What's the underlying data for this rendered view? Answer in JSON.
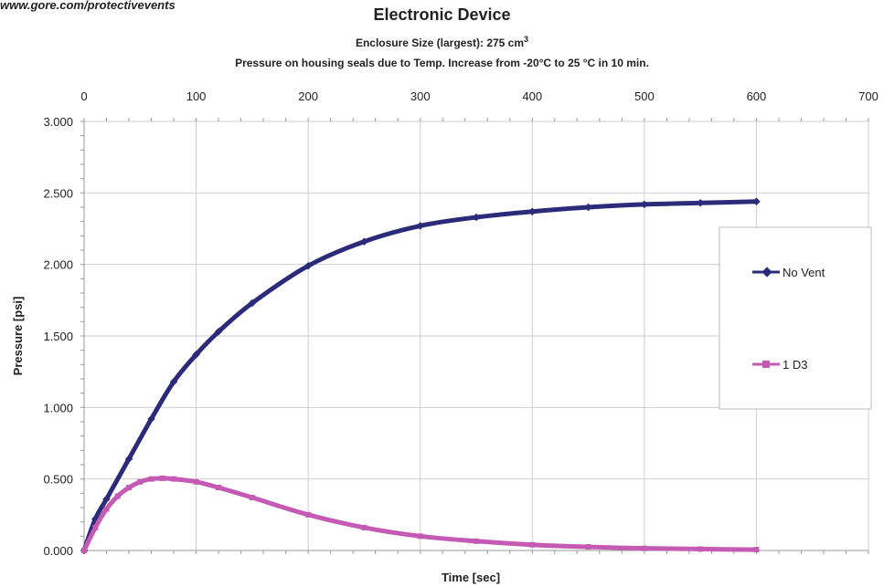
{
  "header": {
    "source": "www.gore.com/protectivevents",
    "title": "Electronic Device",
    "subtitle_prefix": "Enclosure Size (largest):  275 cm",
    "subtitle_sup": "3",
    "subtitle2": "Pressure on housing seals due to Temp. Increase from -20°C to 25 °C in 10 min."
  },
  "colors": {
    "no_vent": "#2b2b7a",
    "d3": "#c45ab3",
    "grid": "#cfcfcf",
    "axis": "#999999"
  },
  "chart_data": {
    "type": "line",
    "title": "Electronic Device",
    "xlabel": "Time  [sec]",
    "ylabel": "Pressure  [psi]",
    "xlim": [
      0,
      700
    ],
    "ylim": [
      0,
      3
    ],
    "x_ticks": [
      0,
      100,
      200,
      300,
      400,
      500,
      600,
      700
    ],
    "x_tick_labels": [
      "0",
      "100",
      "200",
      "300",
      "400",
      "500",
      "600",
      "700"
    ],
    "y_ticks": [
      0,
      0.5,
      1,
      1.5,
      2,
      2.5,
      3
    ],
    "y_tick_labels": [
      "0.000",
      "0.500",
      "1.000",
      "1.500",
      "2.000",
      "2.500",
      "3.000"
    ],
    "grid": true,
    "legend_position": "right",
    "series": [
      {
        "name": "No Vent",
        "x": [
          0,
          10,
          20,
          40,
          60,
          80,
          100,
          120,
          150,
          200,
          250,
          300,
          350,
          400,
          450,
          500,
          550,
          600
        ],
        "y": [
          0,
          0.22,
          0.36,
          0.64,
          0.92,
          1.18,
          1.37,
          1.53,
          1.73,
          1.99,
          2.16,
          2.27,
          2.33,
          2.37,
          2.4,
          2.42,
          2.43,
          2.44
        ]
      },
      {
        "name": "1  D3",
        "x": [
          0,
          10,
          20,
          30,
          40,
          50,
          60,
          70,
          80,
          100,
          120,
          150,
          200,
          250,
          300,
          350,
          400,
          450,
          500,
          550,
          600
        ],
        "y": [
          0,
          0.16,
          0.29,
          0.38,
          0.44,
          0.48,
          0.5,
          0.505,
          0.5,
          0.48,
          0.44,
          0.37,
          0.25,
          0.16,
          0.1,
          0.065,
          0.04,
          0.025,
          0.015,
          0.01,
          0.006
        ]
      }
    ]
  }
}
